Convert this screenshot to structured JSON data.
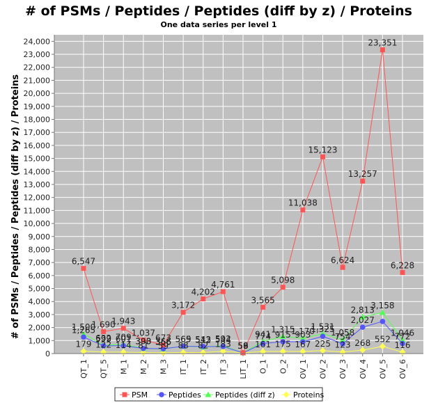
{
  "chart_data": {
    "type": "line",
    "title": "# of PSMs / Peptides / Peptides (diff by z) / Proteins",
    "subtitle": "One data series per level 1",
    "ylabel": "# of PSMs / Peptides / Peptides (diff by z) / Proteins",
    "xlabel": "",
    "ylim": [
      0,
      24500
    ],
    "yticks": [
      0,
      1000,
      2000,
      3000,
      4000,
      5000,
      6000,
      7000,
      8000,
      9000,
      10000,
      11000,
      12000,
      13000,
      14000,
      15000,
      16000,
      17000,
      18000,
      19000,
      20000,
      21000,
      22000,
      23000,
      24000
    ],
    "ytick_labels": [
      "0",
      "1,000",
      "2,000",
      "3,000",
      "4,000",
      "5,000",
      "6,000",
      "7,000",
      "8,000",
      "9,000",
      "10,000",
      "11,000",
      "12,000",
      "13,000",
      "14,000",
      "15,000",
      "16,000",
      "17,000",
      "18,000",
      "19,000",
      "20,000",
      "21,000",
      "22,000",
      "23,000",
      "24,000"
    ],
    "grid": true,
    "legend_position": "bottom",
    "categories": [
      "QT_1",
      "QT_5",
      "M_1",
      "M_2",
      "M_3",
      "IT_1",
      "IT_2",
      "IT_3",
      "LIT_1",
      "O_1",
      "O_2",
      "OV_1",
      "OV_2",
      "OV_3",
      "OV_4",
      "OV_5",
      "OV_6"
    ],
    "series": [
      {
        "name": "PSM",
        "color": "#ff5555",
        "marker": "square",
        "values": [
          6547,
          1690,
          1943,
          1037,
          673,
          3172,
          4202,
          4761,
          58,
          3565,
          5098,
          11038,
          15123,
          6624,
          13257,
          23351,
          6228
        ],
        "labels": [
          "6,547",
          "1,690",
          "1,943",
          "1,037",
          "673",
          "3,172",
          "4,202",
          "4,761",
          "58",
          "3,565",
          "5,098",
          "11,038",
          "15,123",
          "6,624",
          "13,257",
          "23,351",
          "6,228"
        ]
      },
      {
        "name": "Peptides",
        "color": "#5555ff",
        "marker": "circle",
        "values": [
          1265,
          599,
          601,
          393,
          366,
          565,
          543,
          544,
          58,
          774,
          915,
          903,
          1325,
          754,
          2027,
          2470,
          772
        ],
        "labels": [
          "1,265",
          "599",
          "601",
          "393",
          "366",
          "565",
          "543",
          "544",
          "58",
          "774",
          "915",
          "903",
          "1,325",
          "754",
          "2,027",
          "",
          "772"
        ]
      },
      {
        "name": "Peptides (diff z)",
        "color": "#55ff55",
        "marker": "triangle",
        "values": [
          1500,
          632,
          709,
          390,
          356,
          569,
          512,
          592,
          59,
          941,
          1315,
          1170,
          1531,
          1058,
          2813,
          3158,
          1046
        ],
        "labels": [
          "1,500",
          "632",
          "709",
          "390",
          "356",
          "569",
          "512",
          "592",
          "59",
          "941",
          "1,315",
          "1,170",
          "1,531",
          "1,058",
          "2,813",
          "3,158",
          "1,046"
        ]
      },
      {
        "name": "Proteins",
        "color": "#ffff55",
        "marker": "diamond",
        "values": [
          179,
          122,
          114,
          81,
          59,
          88,
          82,
          183,
          56,
          161,
          175,
          167,
          225,
          123,
          268,
          552,
          116
        ],
        "labels": [
          "179",
          "122",
          "114",
          "81",
          "59",
          "88",
          "82",
          "183",
          "56",
          "161",
          "175",
          "167",
          "225",
          "123",
          "268",
          "552",
          "116"
        ]
      }
    ],
    "colors": {
      "plot_background": "#c0c0c0",
      "gridline": "#ffffff"
    }
  }
}
